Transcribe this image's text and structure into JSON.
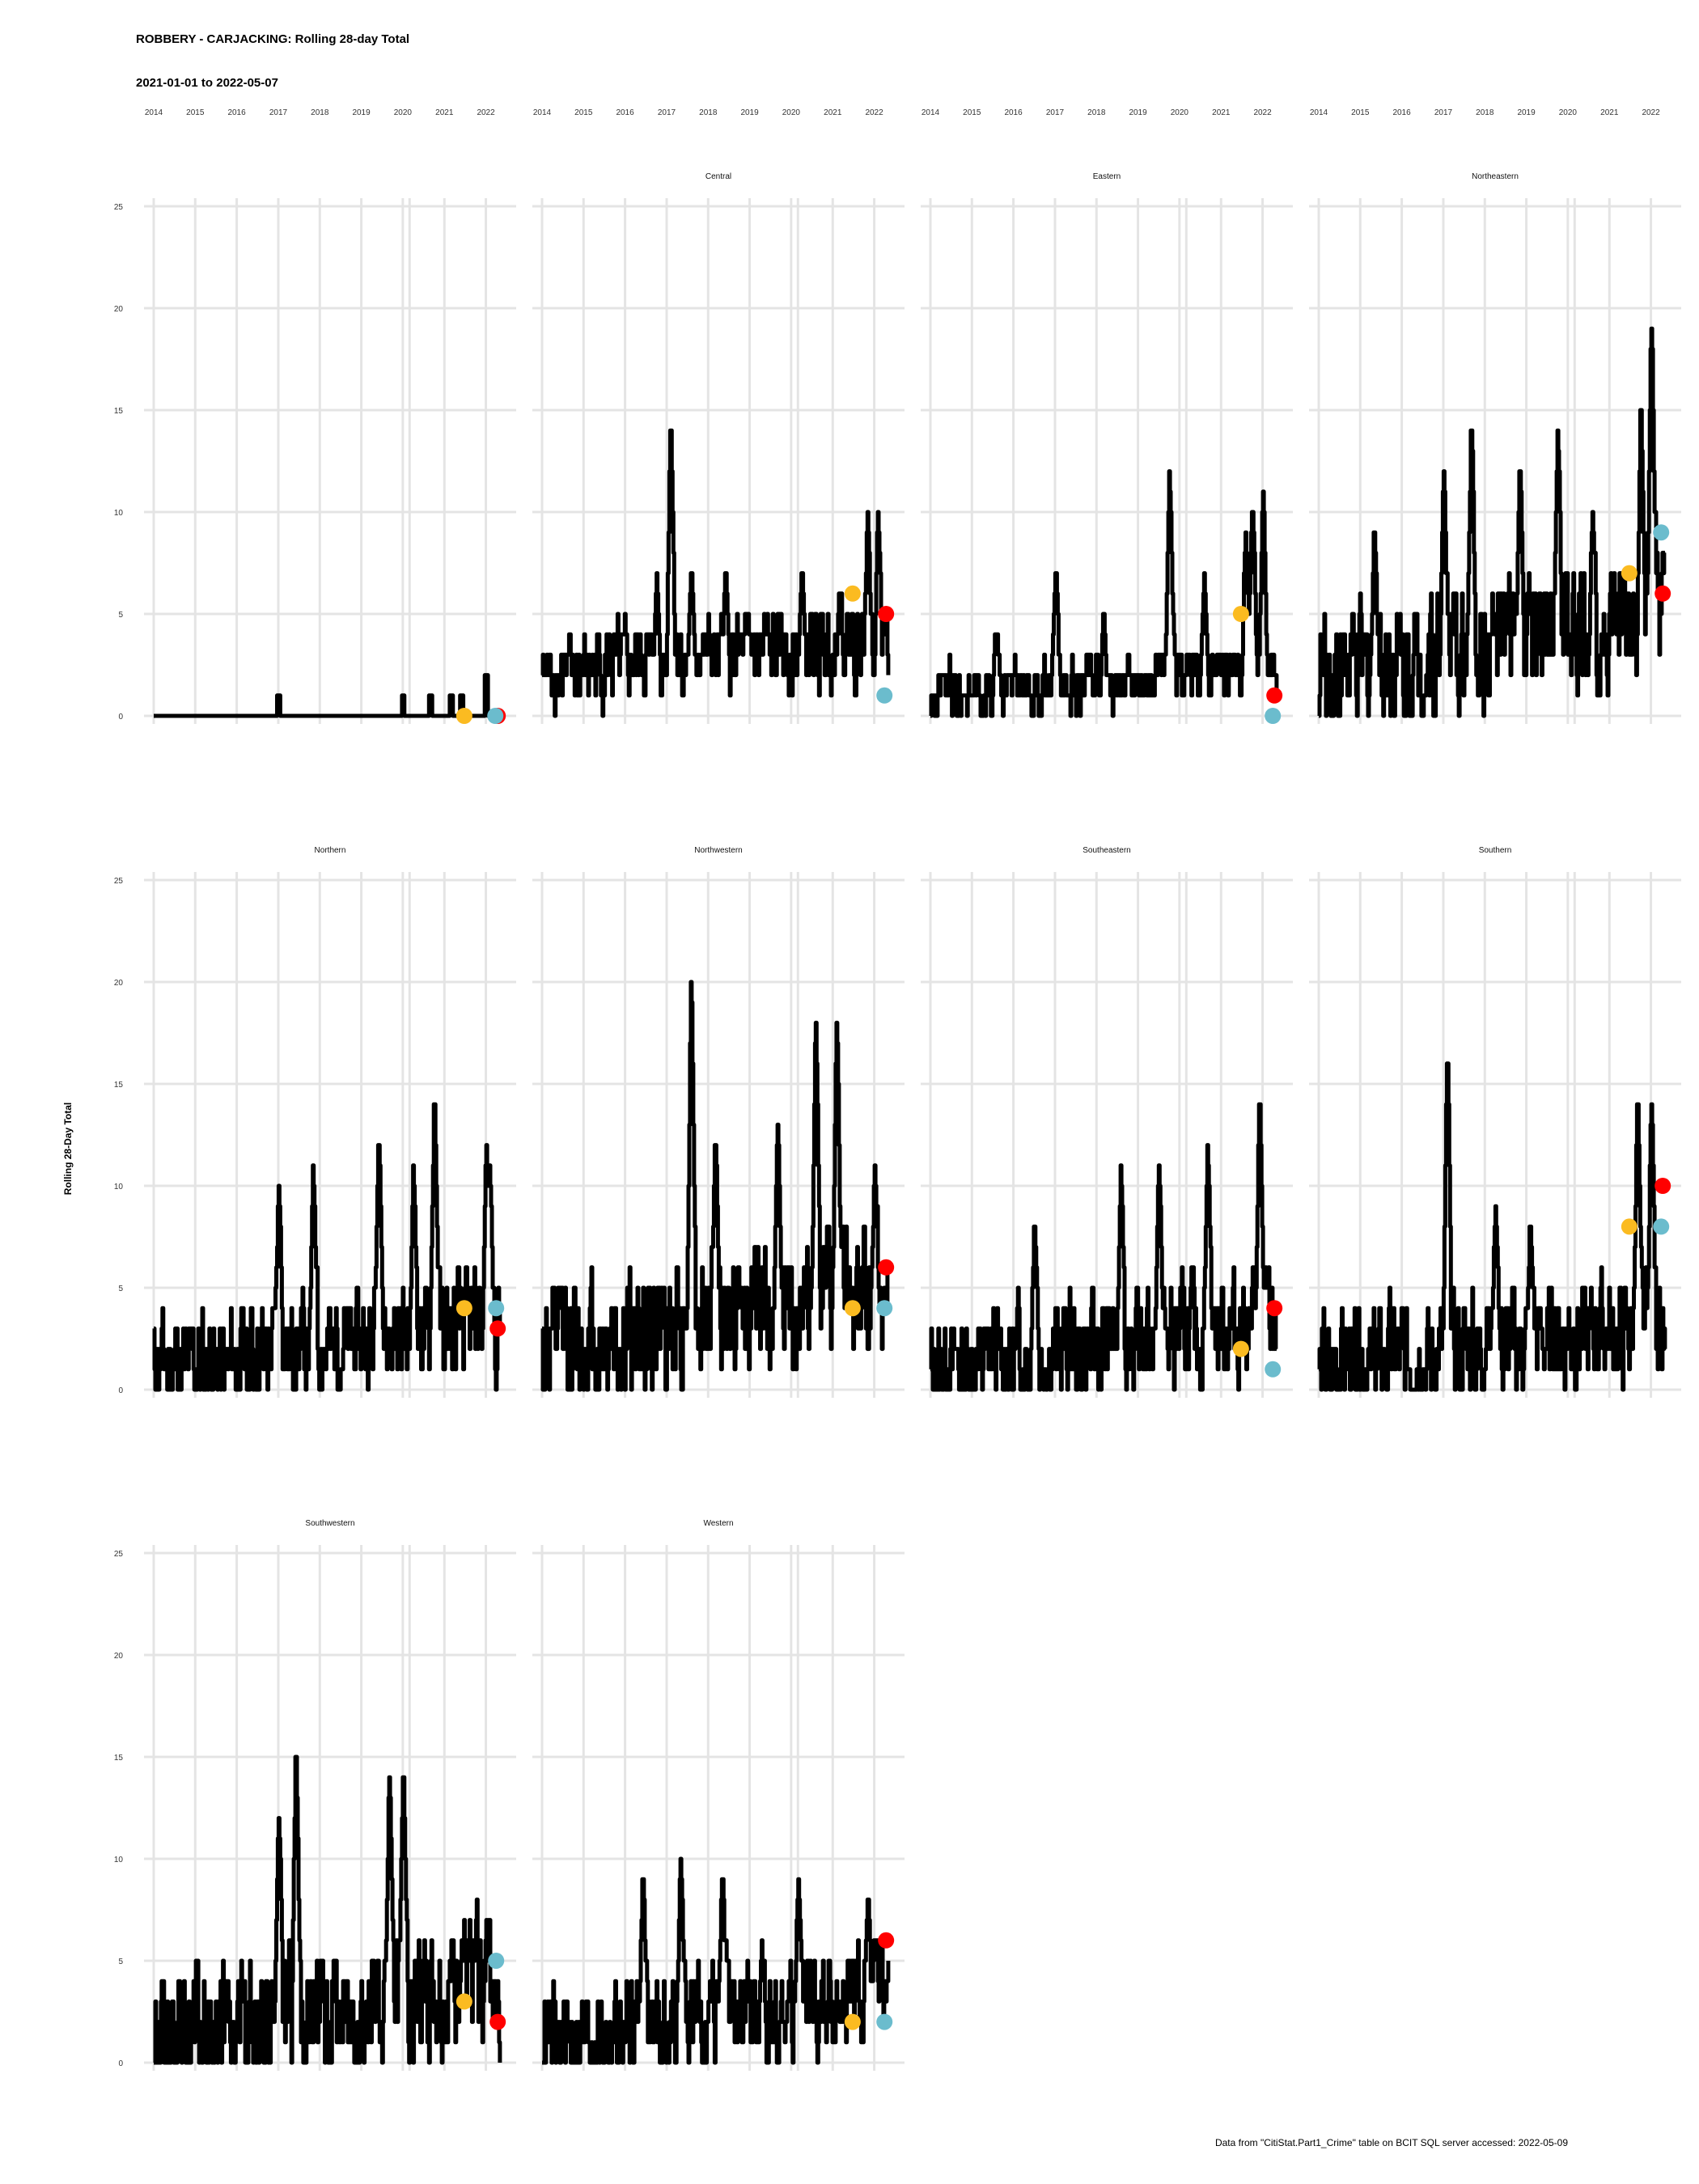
{
  "chart_data": {
    "type": "line",
    "title": "ROBBERY - CARJACKING: Rolling 28-day Total",
    "subtitle": "2021-01-01 to 2022-05-07",
    "ylabel": "Rolling 28-Day Total",
    "caption": "Data from \"CitiStat.Part1_Crime\" table on BCIT SQL server accessed: 2022-05-09",
    "x_ticks": [
      "2014",
      "2015",
      "2016",
      "2017",
      "2018",
      "2019",
      "2020",
      "2021",
      "2022"
    ],
    "y_ticks": [
      0,
      5,
      10,
      15,
      20,
      25
    ],
    "xlim": [
      "2014-01-01",
      "2022-07-01"
    ],
    "ylim": [
      0,
      25
    ],
    "grid": true,
    "legend": "none",
    "point_colors": {
      "yellow": "#fbbb21",
      "red": "#ff0000",
      "blue": "#6bbccd"
    },
    "panels": [
      {
        "name": "",
        "peaks": [
          [
            "2017-01-01",
            1
          ],
          [
            "2020-01-01",
            1
          ],
          [
            "2020-09-01",
            1
          ],
          [
            "2021-03-01",
            1
          ],
          [
            "2021-06-01",
            1
          ],
          [
            "2022-01-01",
            2
          ]
        ],
        "base": 0,
        "amp": 0,
        "points": {
          "yellow": [
            "2021-06-25",
            0
          ],
          "red": [
            "2022-04-15",
            0
          ],
          "blue": [
            "2022-03-25",
            0
          ]
        }
      },
      {
        "name": "Central",
        "peaks": [
          [
            "2016-10-01",
            8
          ],
          [
            "2017-02-01",
            16
          ],
          [
            "2017-08-01",
            8
          ],
          [
            "2018-06-01",
            8
          ],
          [
            "2020-04-01",
            8
          ],
          [
            "2021-03-01",
            7
          ],
          [
            "2021-11-01",
            11
          ],
          [
            "2022-02-01",
            11
          ]
        ],
        "base": 2,
        "amp": 3,
        "points": {
          "yellow": [
            "2021-06-25",
            6
          ],
          "red": [
            "2022-04-15",
            5
          ],
          "blue": [
            "2022-04-01",
            1
          ]
        }
      },
      {
        "name": "Eastern",
        "peaks": [
          [
            "2015-08-01",
            5
          ],
          [
            "2017-01-01",
            8
          ],
          [
            "2018-03-01",
            5
          ],
          [
            "2019-10-01",
            13
          ],
          [
            "2020-08-01",
            8
          ],
          [
            "2021-08-01",
            10
          ],
          [
            "2021-10-01",
            12
          ],
          [
            "2022-01-01",
            12
          ]
        ],
        "base": 1,
        "amp": 2,
        "points": {
          "yellow": [
            "2021-06-25",
            5
          ],
          "red": [
            "2022-04-15",
            1
          ],
          "blue": [
            "2022-04-01",
            0
          ]
        }
      },
      {
        "name": "Northeastern",
        "peaks": [
          [
            "2015-05-01",
            10
          ],
          [
            "2017-01-01",
            13
          ],
          [
            "2017-09-01",
            16
          ],
          [
            "2018-11-01",
            14
          ],
          [
            "2019-10-01",
            16
          ],
          [
            "2020-08-01",
            11
          ],
          [
            "2021-10-01",
            17
          ],
          [
            "2022-01-01",
            22
          ]
        ],
        "base": 2,
        "amp": 5,
        "points": {
          "yellow": [
            "2021-06-25",
            7
          ],
          "red": [
            "2022-04-15",
            6
          ],
          "blue": [
            "2022-04-01",
            9
          ]
        }
      },
      {
        "name": "Northern",
        "peaks": [
          [
            "2017-01-01",
            11
          ],
          [
            "2017-11-01",
            12
          ],
          [
            "2019-06-01",
            14
          ],
          [
            "2020-04-01",
            12
          ],
          [
            "2020-10-01",
            16
          ],
          [
            "2022-01-01",
            14
          ],
          [
            "2022-02-01",
            12
          ]
        ],
        "base": 1,
        "amp": 4,
        "points": {
          "yellow": [
            "2021-06-25",
            4
          ],
          "red": [
            "2022-04-15",
            3
          ],
          "blue": [
            "2022-04-01",
            4
          ]
        }
      },
      {
        "name": "Northwestern",
        "peaks": [
          [
            "2017-08-01",
            22
          ],
          [
            "2018-03-01",
            14
          ],
          [
            "2019-09-01",
            15
          ],
          [
            "2020-08-01",
            20
          ],
          [
            "2021-02-01",
            20
          ],
          [
            "2022-01-01",
            12
          ]
        ],
        "base": 2,
        "amp": 5,
        "points": {
          "yellow": [
            "2021-06-25",
            4
          ],
          "red": [
            "2022-04-15",
            6
          ],
          "blue": [
            "2022-04-01",
            4
          ]
        }
      },
      {
        "name": "Southeastern",
        "peaks": [
          [
            "2016-07-01",
            9
          ],
          [
            "2018-08-01",
            12
          ],
          [
            "2019-07-01",
            12
          ],
          [
            "2020-09-01",
            13
          ],
          [
            "2021-12-01",
            16
          ]
        ],
        "base": 1,
        "amp": 4,
        "points": {
          "yellow": [
            "2021-06-25",
            2
          ],
          "red": [
            "2022-04-15",
            4
          ],
          "blue": [
            "2022-04-01",
            1
          ]
        }
      },
      {
        "name": "Southern",
        "peaks": [
          [
            "2017-02-01",
            18
          ],
          [
            "2018-04-01",
            10
          ],
          [
            "2019-02-01",
            9
          ],
          [
            "2021-09-01",
            16
          ],
          [
            "2022-01-01",
            16
          ]
        ],
        "base": 1,
        "amp": 4,
        "points": {
          "yellow": [
            "2021-06-25",
            8
          ],
          "red": [
            "2022-04-15",
            10
          ],
          "blue": [
            "2022-04-01",
            8
          ]
        }
      },
      {
        "name": "Southwestern",
        "peaks": [
          [
            "2017-01-01",
            14
          ],
          [
            "2017-06-01",
            17
          ],
          [
            "2019-09-01",
            16
          ],
          [
            "2020-01-01",
            16
          ],
          [
            "2021-06-01",
            7
          ]
        ],
        "base": 1,
        "amp": 5,
        "points": {
          "yellow": [
            "2021-06-25",
            3
          ],
          "red": [
            "2022-04-15",
            2
          ],
          "blue": [
            "2022-04-01",
            5
          ]
        }
      },
      {
        "name": "Western",
        "peaks": [
          [
            "2016-06-01",
            10
          ],
          [
            "2017-05-01",
            11
          ],
          [
            "2018-05-01",
            10
          ],
          [
            "2020-03-01",
            10
          ],
          [
            "2021-11-01",
            9
          ],
          [
            "2022-01-01",
            7
          ]
        ],
        "base": 1,
        "amp": 4,
        "points": {
          "yellow": [
            "2021-06-25",
            2
          ],
          "red": [
            "2022-04-15",
            6
          ],
          "blue": [
            "2022-04-01",
            2
          ]
        }
      }
    ]
  }
}
